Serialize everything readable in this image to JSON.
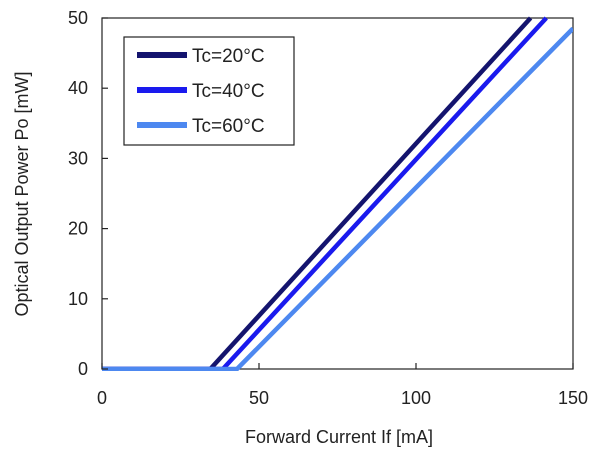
{
  "chart_data": {
    "type": "line",
    "xlabel": "Forward Current If [mA]",
    "ylabel": "Optical Output Power  Po [mW]",
    "xlim": [
      0,
      150
    ],
    "ylim": [
      0,
      50
    ],
    "xticks": [
      0,
      50,
      100,
      150
    ],
    "yticks": [
      0,
      10,
      20,
      30,
      40,
      50
    ],
    "legend_position": "top-left",
    "grid": false,
    "series": [
      {
        "name": "Tc=20°C",
        "color": "#14146e",
        "points": [
          [
            0,
            0
          ],
          [
            34.5,
            0
          ],
          [
            136.5,
            50
          ]
        ]
      },
      {
        "name": "Tc=40°C",
        "color": "#1a1aee",
        "points": [
          [
            0,
            0
          ],
          [
            38.5,
            0
          ],
          [
            141.5,
            50
          ]
        ]
      },
      {
        "name": "Tc=60°C",
        "color": "#4d88f0",
        "points": [
          [
            0,
            0
          ],
          [
            43,
            0
          ],
          [
            150,
            48.5
          ]
        ]
      }
    ]
  }
}
